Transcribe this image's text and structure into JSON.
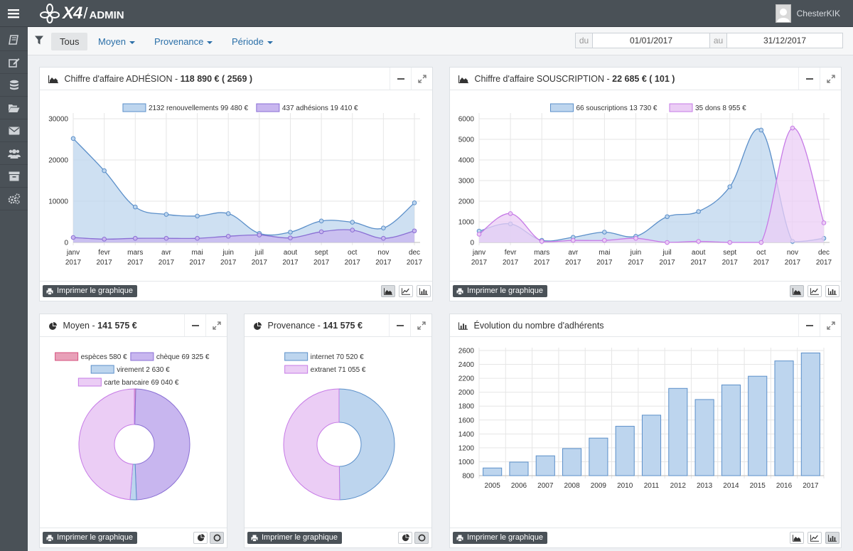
{
  "app": {
    "logo_mark": "X4",
    "logo_suffix": "ADMIN",
    "user_name": "ChesterKIK"
  },
  "icons": {
    "menu": "hamburger-icon",
    "sidebar": [
      "book-icon",
      "edit-icon",
      "database-icon",
      "folder-open-icon",
      "envelope-icon",
      "users-icon",
      "archive-icon",
      "cogs-icon"
    ],
    "filter": "filter-icon"
  },
  "filters": {
    "tabs": [
      {
        "label": "Tous",
        "active": true
      },
      {
        "label": "Moyen"
      },
      {
        "label": "Provenance"
      },
      {
        "label": "Période"
      }
    ],
    "date_from_label": "du",
    "date_from": "01/01/2017",
    "date_to_label": "au",
    "date_to": "31/12/2017"
  },
  "colors": {
    "blue_fill": "#bdd5ee",
    "blue_line": "#5b8fc9",
    "purple_fill": "#c8b6ef",
    "purple_line": "#8a6fd4",
    "pink_fill": "#ebcdf5",
    "pink_line": "#c67ae6",
    "red": "#e8a0b8",
    "red_line": "#d5507e",
    "dark": "#4a5157"
  },
  "print_label": "Imprimer le graphique",
  "panels": {
    "adhesion": {
      "title": "Chiffre d'affaire ADHÉSION - ",
      "total": "118 890 € ",
      "count": " ( 2569 )"
    },
    "souscription": {
      "title": "Chiffre d'affaire SOUSCRIPTION - ",
      "total": "22 685 € ",
      "count": " ( 101 )"
    },
    "moyen": {
      "title": "Moyen - ",
      "total": "141 575 €"
    },
    "provenance": {
      "title": "Provenance - ",
      "total": "141 575 €"
    },
    "evolution": {
      "title": "Évolution du nombre d'adhérents"
    }
  },
  "chart_data": [
    {
      "id": "adhesion",
      "type": "area",
      "categories": [
        [
          "janv",
          "2017"
        ],
        [
          "fevr",
          "2017"
        ],
        [
          "mars",
          "2017"
        ],
        [
          "avr",
          "2017"
        ],
        [
          "mai",
          "2017"
        ],
        [
          "juin",
          "2017"
        ],
        [
          "juil",
          "2017"
        ],
        [
          "aout",
          "2017"
        ],
        [
          "sept",
          "2017"
        ],
        [
          "oct",
          "2017"
        ],
        [
          "nov",
          "2017"
        ],
        [
          "dec",
          "2017"
        ]
      ],
      "ylim": [
        0,
        30000
      ],
      "yticks": [
        0,
        10000,
        20000,
        30000
      ],
      "grid": true,
      "legend": "top-center",
      "series": [
        {
          "name": "2132 renouvellements 99 480 €",
          "color": "blue",
          "values": [
            25200,
            17400,
            8600,
            6800,
            6400,
            7000,
            2200,
            2500,
            5200,
            4900,
            3500,
            9600
          ]
        },
        {
          "name": "437 adhésions 19 410 €",
          "color": "purple",
          "values": [
            1200,
            800,
            1000,
            1000,
            1000,
            1500,
            1800,
            1100,
            2600,
            3000,
            1000,
            2800
          ]
        }
      ]
    },
    {
      "id": "souscription",
      "type": "area",
      "categories": [
        [
          "janv",
          "2017"
        ],
        [
          "fevr",
          "2017"
        ],
        [
          "mars",
          "2017"
        ],
        [
          "avr",
          "2017"
        ],
        [
          "mai",
          "2017"
        ],
        [
          "juin",
          "2017"
        ],
        [
          "juil",
          "2017"
        ],
        [
          "aout",
          "2017"
        ],
        [
          "sept",
          "2017"
        ],
        [
          "oct",
          "2017"
        ],
        [
          "nov",
          "2017"
        ],
        [
          "dec",
          "2017"
        ]
      ],
      "ylim": [
        0,
        6000
      ],
      "yticks": [
        0,
        1000,
        2000,
        3000,
        4000,
        5000,
        6000
      ],
      "grid": true,
      "legend": "top-center",
      "series": [
        {
          "name": "66 souscriptions 13 730 €",
          "color": "blue",
          "values": [
            550,
            900,
            100,
            250,
            500,
            300,
            1250,
            1500,
            2700,
            5450,
            50,
            200
          ]
        },
        {
          "name": "35 dons 8 955 €",
          "color": "pink",
          "values": [
            400,
            1400,
            50,
            100,
            100,
            200,
            0,
            50,
            0,
            0,
            5550,
            950
          ]
        }
      ]
    },
    {
      "id": "moyen",
      "type": "pie",
      "legend": "top",
      "slices": [
        {
          "label": "espèces 580 €",
          "value": 580,
          "color": "red"
        },
        {
          "label": "chèque 69 325 €",
          "value": 69325,
          "color": "purple"
        },
        {
          "label": "virement 2 630 €",
          "value": 2630,
          "color": "blue"
        },
        {
          "label": "carte bancaire 69 040 €",
          "value": 69040,
          "color": "pink"
        }
      ]
    },
    {
      "id": "provenance",
      "type": "pie",
      "legend": "top",
      "slices": [
        {
          "label": "internet 70 520 €",
          "value": 70520,
          "color": "blue"
        },
        {
          "label": "extranet 71 055 €",
          "value": 71055,
          "color": "pink"
        }
      ]
    },
    {
      "id": "evolution",
      "type": "bar",
      "categories": [
        "2005",
        "2006",
        "2007",
        "2008",
        "2009",
        "2010",
        "2011",
        "2012",
        "2013",
        "2014",
        "2015",
        "2016",
        "2017"
      ],
      "values": [
        910,
        995,
        1085,
        1190,
        1340,
        1510,
        1670,
        2055,
        1895,
        2105,
        2230,
        2450,
        2565
      ],
      "ylim": [
        800,
        2600
      ],
      "yticks": [
        800,
        1000,
        1200,
        1400,
        1600,
        1800,
        2000,
        2200,
        2400,
        2600
      ],
      "grid": true
    }
  ]
}
